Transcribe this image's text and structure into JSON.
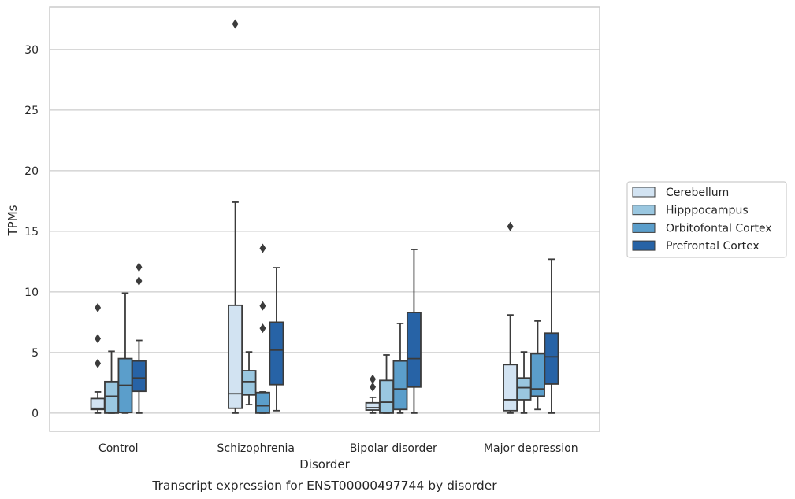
{
  "chart_data": {
    "type": "box",
    "title": "",
    "caption": "Transcript expression for ENST00000497744 by disorder",
    "xlabel": "Disorder",
    "ylabel": "TPMs",
    "ylim": [
      -1.5,
      33.5
    ],
    "yticks": [
      0,
      5,
      10,
      15,
      20,
      25,
      30
    ],
    "grid": "horizontal",
    "legend_position": "right",
    "categories": [
      "Control",
      "Schizophrenia",
      "Bipolar disorder",
      "Major depression"
    ],
    "series": [
      {
        "name": "Cerebellum",
        "color": "#d2e3f2",
        "boxes": [
          {
            "whislo": 0.0,
            "q1": 0.3,
            "med": 0.4,
            "q3": 1.2,
            "whishi": 1.75,
            "fliers": [
              4.1,
              6.15,
              8.7
            ]
          },
          {
            "whislo": 0.0,
            "q1": 0.4,
            "med": 1.6,
            "q3": 8.9,
            "whishi": 17.4,
            "fliers": [
              32.1
            ]
          },
          {
            "whislo": 0.0,
            "q1": 0.25,
            "med": 0.45,
            "q3": 0.85,
            "whishi": 1.3,
            "fliers": [
              2.15,
              2.8
            ]
          },
          {
            "whislo": 0.0,
            "q1": 0.2,
            "med": 1.1,
            "q3": 4.0,
            "whishi": 8.1,
            "fliers": [
              15.4
            ]
          }
        ]
      },
      {
        "name": "Hipppocampus",
        "color": "#9ac7e0",
        "boxes": [
          {
            "whislo": 0.0,
            "q1": 0.0,
            "med": 1.4,
            "q3": 2.6,
            "whishi": 5.1,
            "fliers": []
          },
          {
            "whislo": 0.7,
            "q1": 1.5,
            "med": 2.6,
            "q3": 3.5,
            "whishi": 5.05,
            "fliers": []
          },
          {
            "whislo": 0.0,
            "q1": 0.0,
            "med": 0.9,
            "q3": 2.7,
            "whishi": 4.8,
            "fliers": []
          },
          {
            "whislo": 0.0,
            "q1": 1.1,
            "med": 2.1,
            "q3": 2.9,
            "whishi": 5.05,
            "fliers": []
          }
        ]
      },
      {
        "name": "Orbitofontal Cortex",
        "color": "#5b9ecb",
        "boxes": [
          {
            "whislo": 0.0,
            "q1": 0.05,
            "med": 2.3,
            "q3": 4.5,
            "whishi": 9.9,
            "fliers": []
          },
          {
            "whislo": 0.0,
            "q1": 0.0,
            "med": 0.6,
            "q3": 1.7,
            "whishi": 1.75,
            "fliers": [
              7.0,
              8.85,
              13.6
            ]
          },
          {
            "whislo": 0.0,
            "q1": 0.3,
            "med": 2.0,
            "q3": 4.3,
            "whishi": 7.4,
            "fliers": []
          },
          {
            "whislo": 0.3,
            "q1": 1.4,
            "med": 2.0,
            "q3": 4.9,
            "whishi": 7.6,
            "fliers": []
          }
        ]
      },
      {
        "name": "Prefrontal Cortex",
        "color": "#2763a6",
        "boxes": [
          {
            "whislo": 0.0,
            "q1": 1.8,
            "med": 2.9,
            "q3": 4.3,
            "whishi": 6.0,
            "fliers": [
              10.9,
              12.05
            ]
          },
          {
            "whislo": 0.2,
            "q1": 2.35,
            "med": 5.2,
            "q3": 7.5,
            "whishi": 12.0,
            "fliers": []
          },
          {
            "whislo": 0.0,
            "q1": 2.15,
            "med": 4.5,
            "q3": 8.3,
            "whishi": 13.5,
            "fliers": []
          },
          {
            "whislo": 0.0,
            "q1": 2.4,
            "med": 4.65,
            "q3": 6.6,
            "whishi": 12.7,
            "fliers": []
          }
        ]
      }
    ]
  }
}
